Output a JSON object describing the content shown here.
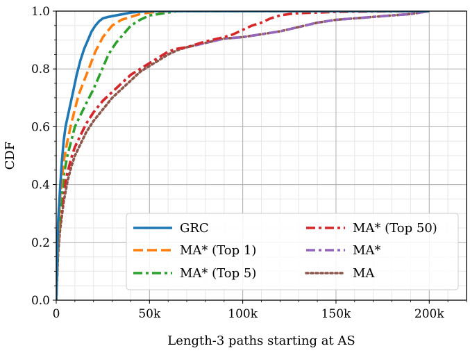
{
  "chart_data": {
    "type": "line",
    "xlabel": "Length-3 paths starting at AS",
    "ylabel": "CDF",
    "xlim": [
      0,
      220000
    ],
    "ylim": [
      0,
      1.0
    ],
    "x_ticks": [
      0,
      50000,
      100000,
      150000,
      200000
    ],
    "x_tick_labels": [
      "0",
      "50k",
      "100k",
      "150k",
      "200k"
    ],
    "y_ticks": [
      0,
      0.2,
      0.4,
      0.6,
      0.8,
      1.0
    ],
    "y_tick_labels": [
      "0.0",
      "0.2",
      "0.4",
      "0.6",
      "0.8",
      "1.0"
    ],
    "x_minor_step": 10000,
    "y_minor_step": 0.05,
    "grid": true,
    "legend": {
      "position": "lower-right",
      "columns": 2
    },
    "series": [
      {
        "name": "GRC",
        "color": "#1f77b4",
        "style": "solid",
        "x": [
          0,
          1000,
          2000,
          3000,
          4000,
          5000,
          7000,
          9000,
          11000,
          13000,
          15000,
          17000,
          19000,
          21000,
          23000,
          25000,
          28000,
          32000,
          36000,
          40000,
          45000,
          50000,
          200000
        ],
        "y": [
          0,
          0.27,
          0.38,
          0.48,
          0.55,
          0.6,
          0.66,
          0.72,
          0.78,
          0.83,
          0.87,
          0.9,
          0.93,
          0.95,
          0.965,
          0.975,
          0.98,
          0.985,
          0.99,
          0.995,
          0.998,
          1.0,
          1.0
        ]
      },
      {
        "name": "MA* (Top 1)",
        "color": "#ff7f0e",
        "style": "dashed",
        "x": [
          0,
          1000,
          2000,
          4000,
          6000,
          8000,
          10000,
          12000,
          15000,
          18000,
          21000,
          25000,
          30000,
          35000,
          40000,
          45000,
          50000,
          55000,
          60000,
          200000
        ],
        "y": [
          0,
          0.22,
          0.35,
          0.48,
          0.55,
          0.61,
          0.66,
          0.71,
          0.76,
          0.81,
          0.86,
          0.91,
          0.95,
          0.97,
          0.98,
          0.99,
          0.995,
          0.998,
          1.0,
          1.0
        ]
      },
      {
        "name": "MA* (Top 5)",
        "color": "#2ca02c",
        "style": "dashdot",
        "x": [
          0,
          1000,
          2000,
          4000,
          6000,
          8000,
          10000,
          13000,
          16000,
          20000,
          24000,
          28000,
          32000,
          36000,
          40000,
          45000,
          50000,
          55000,
          60000,
          65000,
          200000
        ],
        "y": [
          0,
          0.2,
          0.3,
          0.43,
          0.5,
          0.55,
          0.6,
          0.64,
          0.68,
          0.73,
          0.79,
          0.85,
          0.89,
          0.92,
          0.95,
          0.97,
          0.985,
          0.99,
          0.995,
          1.0,
          1.0
        ]
      },
      {
        "name": "MA* (Top 50)",
        "color": "#d62728",
        "style": "dashdot",
        "x": [
          0,
          1000,
          2000,
          4000,
          6000,
          8000,
          10000,
          13000,
          16000,
          20000,
          25000,
          30000,
          35000,
          40000,
          45000,
          50000,
          55000,
          60000,
          65000,
          70000,
          80000,
          90000,
          95000,
          100000,
          105000,
          110000,
          115000,
          120000,
          125000,
          130000,
          140000,
          150000,
          160000,
          180000,
          200000
        ],
        "y": [
          0,
          0.18,
          0.27,
          0.38,
          0.44,
          0.49,
          0.53,
          0.57,
          0.61,
          0.65,
          0.69,
          0.72,
          0.75,
          0.78,
          0.8,
          0.82,
          0.84,
          0.86,
          0.87,
          0.875,
          0.895,
          0.91,
          0.92,
          0.935,
          0.95,
          0.96,
          0.975,
          0.985,
          0.99,
          0.993,
          0.995,
          0.997,
          0.998,
          0.999,
          1.0
        ]
      },
      {
        "name": "MA*",
        "color": "#9467bd",
        "style": "dashdot",
        "x": [
          0,
          1000,
          2000,
          4000,
          6000,
          8000,
          10000,
          13000,
          16000,
          20000,
          25000,
          30000,
          35000,
          40000,
          45000,
          50000,
          55000,
          60000,
          65000,
          70000,
          80000,
          90000,
          100000,
          110000,
          120000,
          130000,
          140000,
          150000,
          160000,
          170000,
          180000,
          190000,
          200000
        ],
        "y": [
          0,
          0.18,
          0.27,
          0.38,
          0.44,
          0.49,
          0.53,
          0.57,
          0.61,
          0.65,
          0.69,
          0.72,
          0.75,
          0.78,
          0.8,
          0.82,
          0.84,
          0.86,
          0.87,
          0.875,
          0.89,
          0.905,
          0.91,
          0.92,
          0.93,
          0.945,
          0.96,
          0.97,
          0.975,
          0.98,
          0.985,
          0.99,
          1.0
        ]
      },
      {
        "name": "MA",
        "color": "#8c564b",
        "style": "dotted",
        "x": [
          0,
          1000,
          2000,
          4000,
          6000,
          8000,
          10000,
          13000,
          16000,
          20000,
          25000,
          30000,
          35000,
          40000,
          45000,
          50000,
          55000,
          60000,
          65000,
          70000,
          80000,
          90000,
          100000,
          110000,
          120000,
          130000,
          140000,
          150000,
          160000,
          170000,
          180000,
          190000,
          200000
        ],
        "y": [
          0,
          0.16,
          0.24,
          0.34,
          0.41,
          0.46,
          0.5,
          0.54,
          0.58,
          0.62,
          0.66,
          0.7,
          0.73,
          0.76,
          0.79,
          0.81,
          0.83,
          0.85,
          0.865,
          0.875,
          0.89,
          0.905,
          0.91,
          0.92,
          0.93,
          0.945,
          0.96,
          0.97,
          0.975,
          0.98,
          0.985,
          0.99,
          1.0
        ]
      }
    ]
  }
}
